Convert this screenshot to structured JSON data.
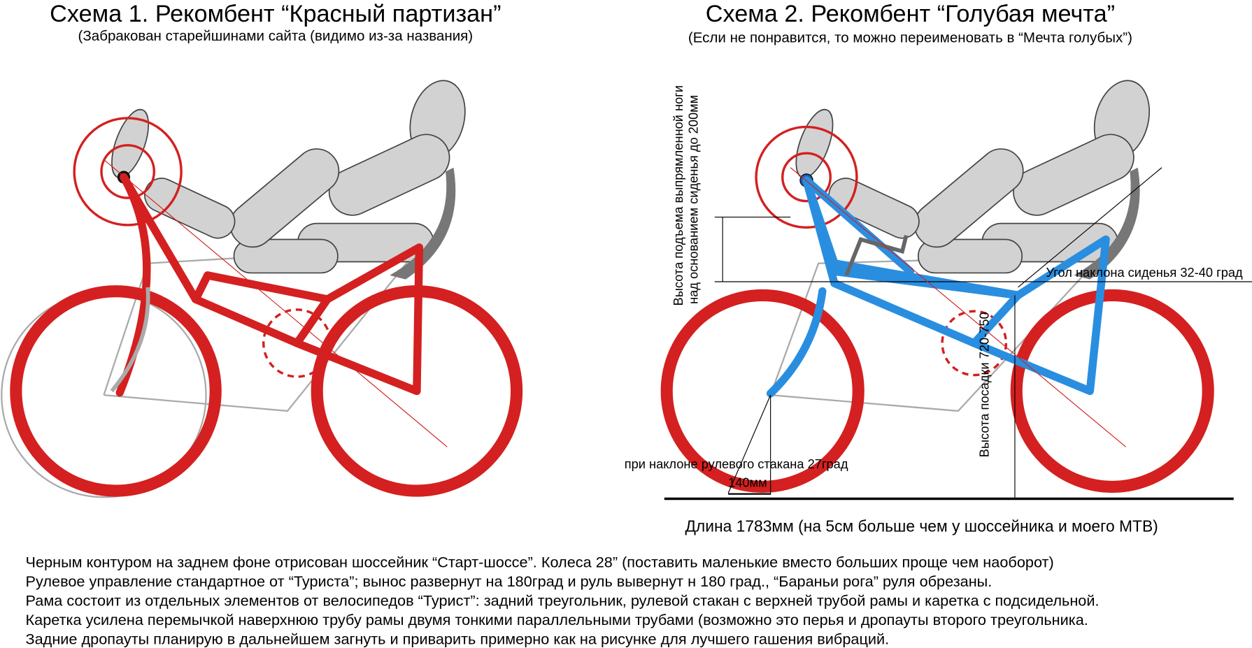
{
  "schemes": [
    {
      "title": "Схема 1. Рекомбент “Красный партизан”",
      "subtitle": "(Забракован старейшинами сайта (видимо из-за названия)"
    },
    {
      "title": "Схема 2. Рекомбент “Голубая мечта”",
      "subtitle": "(Если не понравится, то можно переименовать в “Мечта голубых”)",
      "annotations": {
        "leg_height": [
          "Высота подъема выпрямленной ноги",
          "над основанием сиденья до 200мм"
        ],
        "seat_angle": "Угол наклона сиденья 32-40 град",
        "seat_height": "Высота посадки 720-750",
        "head_tube": "при наклоне рулевого стакана 27град",
        "offset": "140мм"
      },
      "length": "Длина 1783мм (на 5см больше чем у шоссейника и моего МТВ)"
    }
  ],
  "notes": [
    "Черным контуром на заднем фоне отрисован шоссейник “Старт-шоссе”. Колеса 28” (поставить маленькие вместо больших проще чем наоборот)",
    "Рулевое управление стандартное от “Туриста”; вынос развернут на 180град и руль вывернут н 180 град., “Бараньи рога” руля обрезаны.",
    "Рама состоит из отдельных элементов от велосипедов “Турист”: задний треугольник, рулевой стакан с верхней трубой рамы и каретка с подсидельной.",
    "Каретка усилена перемычкой наверхнюю трубу рамы двумя тонкими параллельными трубами (возможно это перья и дропауты второго треугольника.",
    "Задние дропауты планирую в дальнейшем загнуть и приварить примерно как на рисунке для лучшего гашения вибраций."
  ]
}
